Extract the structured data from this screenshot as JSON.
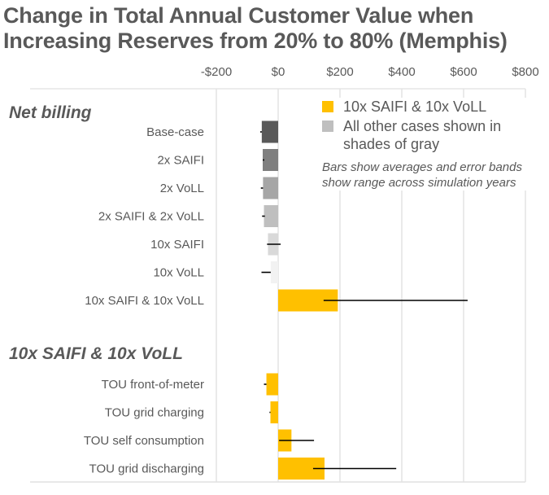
{
  "chart_data": {
    "type": "bar",
    "orientation": "horizontal",
    "title": "Change in Total Annual Customer Value when Increasing Reserves from 20% to 80% (Memphis)",
    "title_lines": [
      "Change in Total Annual Customer Value when",
      "Increasing Reserves from 20% to 80% (Memphis)"
    ],
    "xlabel": "",
    "ylabel": "",
    "xlim": [
      -200,
      800
    ],
    "x_ticks": [
      -200,
      0,
      200,
      400,
      600,
      800
    ],
    "x_tick_labels": [
      "-$200",
      "$0",
      "$200",
      "$400",
      "$600",
      "$800"
    ],
    "grid": true,
    "legend_position": "top-right",
    "legend": [
      {
        "label": "10x SAIFI & 10x VoLL",
        "color": "#FFC000"
      },
      {
        "label": "All other cases shown in shades of gray",
        "color": "#BFBFBF"
      }
    ],
    "legend_note": "Bars show averages and error bands show range across simulation years",
    "groups": [
      {
        "name": "Net billing",
        "categories": [
          {
            "label": "Base-case",
            "value": -53,
            "range": [
              -58,
              -53
            ],
            "color": "#595959"
          },
          {
            "label": "2x SAIFI",
            "value": -50,
            "range": [
              -50,
              -45
            ],
            "color": "#7F7F7F"
          },
          {
            "label": "2x VoLL",
            "value": -49,
            "range": [
              -56,
              -49
            ],
            "color": "#A6A6A6"
          },
          {
            "label": "2x SAIFI & 2x VoLL",
            "value": -46,
            "range": [
              -52,
              -43
            ],
            "color": "#BFBFBF"
          },
          {
            "label": "10x SAIFI",
            "value": -33,
            "range": [
              -36,
              8
            ],
            "color": "#D9D9D9"
          },
          {
            "label": "10x VoLL",
            "value": -24,
            "range": [
              -54,
              -24
            ],
            "color": "#F2F2F2"
          },
          {
            "label": "10x SAIFI & 10x VoLL",
            "value": 193,
            "range": [
              147,
              613
            ],
            "color": "#FFC000"
          }
        ]
      },
      {
        "name": "10x SAIFI & 10x VoLL",
        "categories": [
          {
            "label": "TOU front-of-meter",
            "value": -38,
            "range": [
              -46,
              -38
            ],
            "color": "#FFC000"
          },
          {
            "label": "TOU grid charging",
            "value": -25,
            "range": [
              -28,
              -25
            ],
            "color": "#FFC000"
          },
          {
            "label": "TOU self consumption",
            "value": 43,
            "range": [
              3,
              116
            ],
            "color": "#FFC000"
          },
          {
            "label": "TOU grid discharging",
            "value": 150,
            "range": [
              113,
              382
            ],
            "color": "#FFC000"
          }
        ]
      }
    ]
  }
}
